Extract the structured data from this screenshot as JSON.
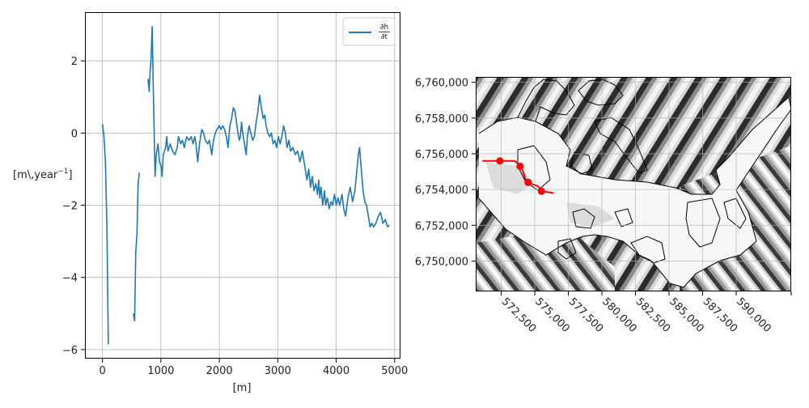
{
  "colors": {
    "series": "#1f77b4",
    "grid": "#b0b0b0",
    "axis": "#000000",
    "profile": "#ff0000",
    "outline": "#000000"
  },
  "chart_data": [
    {
      "type": "line",
      "title": "",
      "xlabel": "[m]",
      "ylabel": "[m\\,year$^{-1}$]",
      "ylabel_display": "[m\\,year",
      "ylabel_sup": "−1",
      "ylabel_close": "]",
      "xlim": [
        -300,
        5100
      ],
      "ylim": [
        -6.25,
        3.35
      ],
      "xticks": [
        0,
        1000,
        2000,
        3000,
        4000,
        5000
      ],
      "xtick_labels": [
        "0",
        "1000",
        "2000",
        "3000",
        "4000",
        "5000"
      ],
      "yticks": [
        -6,
        -4,
        -2,
        0,
        2
      ],
      "ytick_labels": [
        "−6",
        "−4",
        "−2",
        "0",
        "2"
      ],
      "grid": true,
      "legend": {
        "position": "top-right",
        "entries": [
          "∂h/∂t"
        ],
        "num": "∂h",
        "den": "∂t"
      },
      "series": [
        {
          "name": "∂h/∂t",
          "segments": [
            [
              [
                0,
                0.25
              ],
              [
                25,
                -0.1
              ],
              [
                50,
                -0.8
              ],
              [
                75,
                -2.5
              ],
              [
                100,
                -5.85
              ]
            ],
            [
              [
                530,
                -5.0
              ],
              [
                550,
                -5.2
              ],
              [
                570,
                -3.3
              ],
              [
                590,
                -2.8
              ],
              [
                610,
                -1.4
              ],
              [
                630,
                -1.1
              ]
            ],
            [
              [
                780,
                1.5
              ],
              [
                800,
                1.15
              ],
              [
                815,
                1.7
              ],
              [
                830,
                2.0
              ],
              [
                850,
                2.95
              ],
              [
                870,
                1.2
              ],
              [
                885,
                0.0
              ],
              [
                900,
                -1.2
              ],
              [
                920,
                -0.6
              ],
              [
                950,
                -0.3
              ],
              [
                975,
                -0.8
              ],
              [
                1000,
                -0.9
              ],
              [
                1020,
                -1.2
              ],
              [
                1040,
                -0.6
              ],
              [
                1080,
                -0.4
              ],
              [
                1100,
                -0.1
              ],
              [
                1120,
                -0.5
              ],
              [
                1160,
                -0.3
              ],
              [
                1200,
                -0.5
              ],
              [
                1240,
                -0.6
              ],
              [
                1280,
                -0.4
              ],
              [
                1300,
                -0.1
              ],
              [
                1340,
                -0.3
              ],
              [
                1370,
                -0.2
              ],
              [
                1400,
                -0.4
              ],
              [
                1440,
                -0.1
              ],
              [
                1480,
                -0.2
              ],
              [
                1520,
                -0.1
              ],
              [
                1550,
                -0.3
              ],
              [
                1580,
                -0.1
              ],
              [
                1600,
                -0.3
              ],
              [
                1630,
                -0.8
              ],
              [
                1660,
                -0.3
              ],
              [
                1700,
                0.1
              ],
              [
                1730,
                0.0
              ],
              [
                1760,
                -0.2
              ],
              [
                1800,
                -0.3
              ],
              [
                1830,
                -0.2
              ],
              [
                1870,
                -0.6
              ],
              [
                1900,
                -0.2
              ],
              [
                1930,
                0.0
              ],
              [
                1960,
                0.1
              ],
              [
                2000,
                0.2
              ],
              [
                2030,
                0.1
              ],
              [
                2060,
                0.2
              ],
              [
                2090,
                0.1
              ],
              [
                2120,
                -0.1
              ],
              [
                2150,
                -0.4
              ],
              [
                2180,
                0.2
              ],
              [
                2210,
                0.4
              ],
              [
                2240,
                0.7
              ],
              [
                2270,
                0.6
              ],
              [
                2300,
                0.2
              ],
              [
                2320,
                0.0
              ],
              [
                2340,
                -0.2
              ],
              [
                2360,
                -0.1
              ],
              [
                2380,
                0.3
              ],
              [
                2400,
                0.0
              ],
              [
                2430,
                -0.3
              ],
              [
                2460,
                -0.6
              ],
              [
                2480,
                -0.1
              ],
              [
                2510,
                0.2
              ],
              [
                2540,
                0.0
              ],
              [
                2570,
                -0.2
              ],
              [
                2600,
                -0.1
              ],
              [
                2630,
                0.3
              ],
              [
                2660,
                0.6
              ],
              [
                2690,
                1.05
              ],
              [
                2720,
                0.7
              ],
              [
                2750,
                0.4
              ],
              [
                2780,
                0.5
              ],
              [
                2800,
                0.2
              ],
              [
                2830,
                0.0
              ],
              [
                2860,
                -0.1
              ],
              [
                2890,
                0.0
              ],
              [
                2920,
                -0.3
              ],
              [
                2950,
                -0.2
              ],
              [
                2980,
                -0.4
              ],
              [
                3010,
                -0.1
              ],
              [
                3040,
                -0.3
              ],
              [
                3070,
                -0.1
              ],
              [
                3100,
                0.2
              ],
              [
                3130,
                0.0
              ],
              [
                3160,
                -0.4
              ],
              [
                3190,
                -0.2
              ],
              [
                3220,
                -0.5
              ],
              [
                3260,
                -0.4
              ],
              [
                3300,
                -0.6
              ],
              [
                3340,
                -0.5
              ],
              [
                3380,
                -0.8
              ],
              [
                3420,
                -0.5
              ],
              [
                3460,
                -0.9
              ],
              [
                3500,
                -1.3
              ],
              [
                3530,
                -1.0
              ],
              [
                3560,
                -1.5
              ],
              [
                3590,
                -1.2
              ],
              [
                3620,
                -1.6
              ],
              [
                3650,
                -1.4
              ],
              [
                3680,
                -1.7
              ],
              [
                3700,
                -1.3
              ],
              [
                3720,
                -1.8
              ],
              [
                3740,
                -1.5
              ],
              [
                3770,
                -2.0
              ],
              [
                3800,
                -1.6
              ],
              [
                3820,
                -2.0
              ],
              [
                3850,
                -1.8
              ],
              [
                3880,
                -2.1
              ],
              [
                3910,
                -1.9
              ],
              [
                3940,
                -2.0
              ],
              [
                3970,
                -1.7
              ],
              [
                4000,
                -2.0
              ],
              [
                4030,
                -1.8
              ],
              [
                4060,
                -2.0
              ],
              [
                4100,
                -1.7
              ],
              [
                4130,
                -2.1
              ],
              [
                4160,
                -2.3
              ],
              [
                4200,
                -1.8
              ],
              [
                4240,
                -1.5
              ],
              [
                4280,
                -1.9
              ],
              [
                4320,
                -1.6
              ],
              [
                4350,
                -1.1
              ],
              [
                4380,
                -0.6
              ],
              [
                4400,
                -0.4
              ],
              [
                4430,
                -1.0
              ],
              [
                4460,
                -1.6
              ],
              [
                4490,
                -1.9
              ],
              [
                4520,
                -2.0
              ],
              [
                4550,
                -2.3
              ],
              [
                4580,
                -2.6
              ],
              [
                4610,
                -2.5
              ],
              [
                4640,
                -2.6
              ],
              [
                4680,
                -2.5
              ],
              [
                4720,
                -2.3
              ],
              [
                4760,
                -2.2
              ],
              [
                4800,
                -2.5
              ],
              [
                4840,
                -2.4
              ],
              [
                4880,
                -2.6
              ],
              [
                4910,
                -2.55
              ]
            ]
          ]
        }
      ]
    },
    {
      "type": "map",
      "title": "",
      "xlim": [
        570600,
        594100
      ],
      "ylim": [
        6748300,
        6760300
      ],
      "xticks": [
        572500,
        575000,
        577500,
        580000,
        582500,
        585000,
        587500,
        590000
      ],
      "xtick_labels": [
        "572,500",
        "575,000",
        "577,500",
        "580,000",
        "582,500",
        "585,000",
        "587,500",
        "590,000"
      ],
      "yticks": [
        6750000,
        6752000,
        6754000,
        6756000,
        6758000,
        6760000
      ],
      "ytick_labels": [
        "6,750,000",
        "6,752,000",
        "6,754,000",
        "6,756,000",
        "6,758,000",
        "6,760,000"
      ],
      "grid": true,
      "profile": {
        "line": [
          [
            571100,
            6755600
          ],
          [
            572400,
            6755600
          ],
          [
            573500,
            6755600
          ],
          [
            574000,
            6755300
          ],
          [
            574400,
            6754400
          ],
          [
            575200,
            6754200
          ],
          [
            575600,
            6753900
          ],
          [
            576400,
            6753800
          ]
        ],
        "points": [
          [
            572400,
            6755600
          ],
          [
            573900,
            6755300
          ],
          [
            574500,
            6754400
          ],
          [
            575500,
            6753900
          ]
        ]
      }
    }
  ]
}
